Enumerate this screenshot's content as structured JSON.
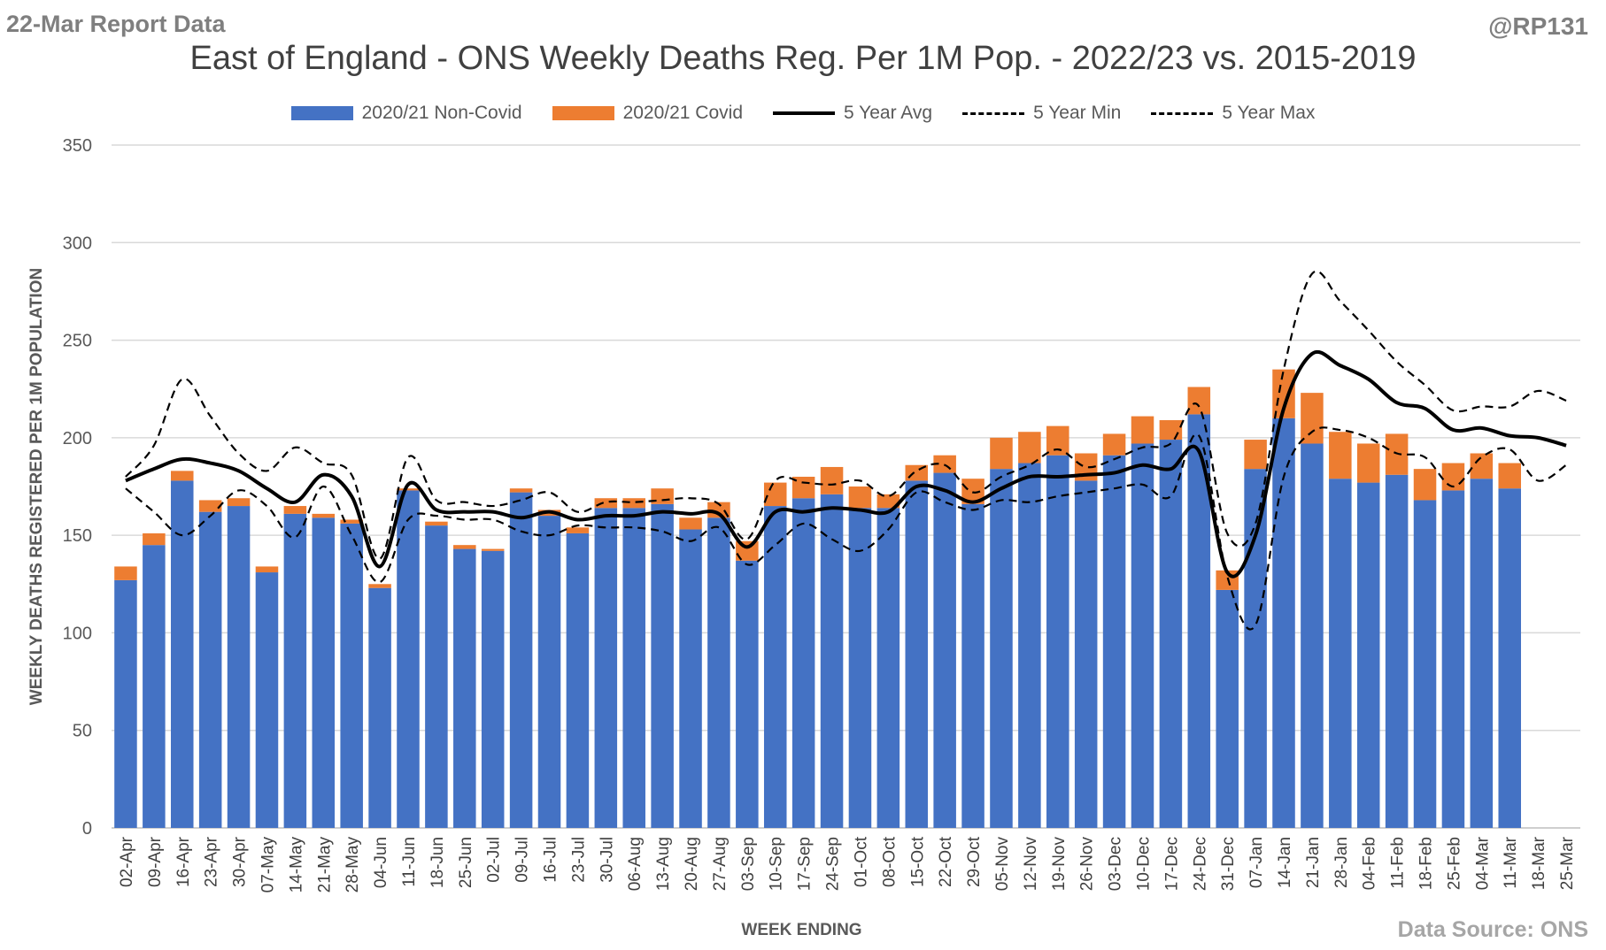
{
  "header": {
    "report_tag": "22-Mar Report Data",
    "handle": "@RP131",
    "source": "Data Source: ONS"
  },
  "chart_data": {
    "type": "bar",
    "title": "East of England - ONS Weekly Deaths Reg. Per 1M Pop. - 2022/23 vs. 2015-2019",
    "xlabel": "WEEK ENDING",
    "ylabel": "WEEKLY DEATHS REGISTERED PER 1M POPULATION",
    "ylim": [
      0,
      350
    ],
    "yticks": [
      0,
      50,
      100,
      150,
      200,
      250,
      300,
      350
    ],
    "grid": true,
    "legend_position": "top",
    "categories": [
      "02-Apr",
      "09-Apr",
      "16-Apr",
      "23-Apr",
      "30-Apr",
      "07-May",
      "14-May",
      "21-May",
      "28-May",
      "04-Jun",
      "11-Jun",
      "18-Jun",
      "25-Jun",
      "02-Jul",
      "09-Jul",
      "16-Jul",
      "23-Jul",
      "30-Jul",
      "06-Aug",
      "13-Aug",
      "20-Aug",
      "27-Aug",
      "03-Sep",
      "10-Sep",
      "17-Sep",
      "24-Sep",
      "01-Oct",
      "08-Oct",
      "15-Oct",
      "22-Oct",
      "29-Oct",
      "05-Nov",
      "12-Nov",
      "19-Nov",
      "26-Nov",
      "03-Dec",
      "10-Dec",
      "17-Dec",
      "24-Dec",
      "31-Dec",
      "07-Jan",
      "14-Jan",
      "21-Jan",
      "28-Jan",
      "04-Feb",
      "11-Feb",
      "18-Feb",
      "25-Feb",
      "04-Mar",
      "11-Mar",
      "18-Mar",
      "25-Mar"
    ],
    "series": [
      {
        "name": "2020/21 Non-Covid",
        "kind": "bar",
        "stack": "deaths",
        "color": "#4472c4",
        "values": [
          127,
          145,
          178,
          162,
          165,
          131,
          161,
          159,
          156,
          123,
          173,
          155,
          143,
          142,
          172,
          160,
          151,
          164,
          164,
          166,
          153,
          159,
          137,
          165,
          169,
          171,
          164,
          164,
          178,
          182,
          166,
          184,
          187,
          191,
          178,
          191,
          197,
          199,
          212,
          122,
          184,
          210,
          197,
          179,
          177,
          181,
          168,
          173,
          179,
          174,
          null,
          null
        ]
      },
      {
        "name": "2020/21 Covid",
        "kind": "bar",
        "stack": "deaths",
        "color": "#ed7d31",
        "values": [
          7,
          6,
          5,
          6,
          4,
          3,
          4,
          2,
          2,
          2,
          1,
          2,
          2,
          1,
          2,
          3,
          3,
          5,
          5,
          8,
          6,
          8,
          10,
          12,
          11,
          14,
          11,
          7,
          8,
          9,
          13,
          16,
          16,
          15,
          14,
          11,
          14,
          10,
          14,
          10,
          15,
          25,
          26,
          24,
          20,
          21,
          16,
          14,
          13,
          13,
          null,
          null
        ]
      },
      {
        "name": "5 Year Avg",
        "kind": "line",
        "style": "solid",
        "color": "#000000",
        "values": [
          178,
          184,
          189,
          187,
          183,
          174,
          167,
          181,
          170,
          134,
          176,
          163,
          162,
          162,
          159,
          162,
          158,
          160,
          160,
          162,
          161,
          161,
          144,
          162,
          162,
          164,
          163,
          162,
          175,
          173,
          167,
          174,
          180,
          180,
          181,
          182,
          186,
          184,
          193,
          131,
          150,
          215,
          243,
          237,
          230,
          218,
          215,
          204,
          205,
          201,
          200,
          196
        ]
      },
      {
        "name": "5 Year Min",
        "kind": "line",
        "style": "dashed",
        "color": "#000000",
        "values": [
          174,
          162,
          150,
          160,
          173,
          165,
          149,
          175,
          150,
          126,
          158,
          160,
          158,
          158,
          152,
          150,
          155,
          154,
          154,
          152,
          147,
          154,
          135,
          145,
          156,
          148,
          142,
          153,
          172,
          167,
          163,
          168,
          167,
          170,
          172,
          174,
          176,
          170,
          201,
          129,
          104,
          180,
          203,
          204,
          200,
          192,
          190,
          175,
          190,
          194,
          178,
          186
        ]
      },
      {
        "name": "5 Year Max",
        "kind": "line",
        "style": "dashed",
        "color": "#000000",
        "values": [
          180,
          196,
          230,
          211,
          192,
          183,
          195,
          187,
          181,
          138,
          190,
          168,
          167,
          165,
          168,
          172,
          162,
          167,
          167,
          168,
          169,
          166,
          148,
          178,
          177,
          176,
          178,
          170,
          183,
          186,
          172,
          180,
          186,
          194,
          185,
          189,
          195,
          197,
          216,
          151,
          156,
          235,
          284,
          270,
          255,
          239,
          227,
          214,
          216,
          216,
          224,
          219
        ]
      }
    ]
  },
  "legend": {
    "items": [
      {
        "label": "2020/21 Non-Covid",
        "color": "#4472c4"
      },
      {
        "label": "2020/21 Covid",
        "color": "#ed7d31"
      },
      {
        "label": "5 Year Avg"
      },
      {
        "label": "5 Year Min"
      },
      {
        "label": "5 Year Max"
      }
    ]
  }
}
